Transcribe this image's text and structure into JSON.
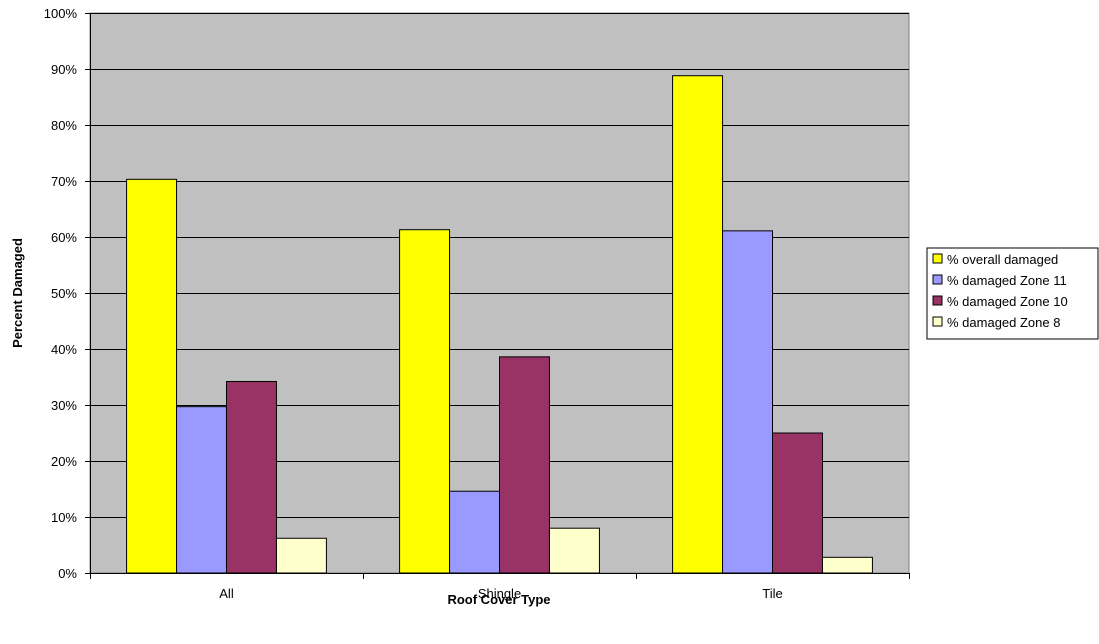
{
  "chart_data": {
    "type": "bar",
    "title": "",
    "xlabel": "Roof Cover Type",
    "ylabel": "Percent Damaged",
    "categories": [
      "All",
      "Shingle",
      "Tile"
    ],
    "ylim": [
      0,
      100
    ],
    "yticks": [
      0,
      10,
      20,
      30,
      40,
      50,
      60,
      70,
      80,
      90,
      100
    ],
    "ytick_suffix": "%",
    "grid": true,
    "legend_position": "right",
    "plot_background": "#c0c0c0",
    "series": [
      {
        "name": "% overall damaged",
        "color": "#ffff00",
        "values": [
          70.3,
          61.3,
          88.8
        ]
      },
      {
        "name": "% damaged Zone 11",
        "color": "#9999ff",
        "values": [
          29.7,
          14.6,
          61.1
        ]
      },
      {
        "name": "% damaged Zone 10",
        "color": "#993366",
        "values": [
          34.2,
          38.6,
          25.0
        ]
      },
      {
        "name": "% damaged Zone 8",
        "color": "#ffffcc",
        "values": [
          6.2,
          8.0,
          2.8
        ]
      }
    ]
  }
}
